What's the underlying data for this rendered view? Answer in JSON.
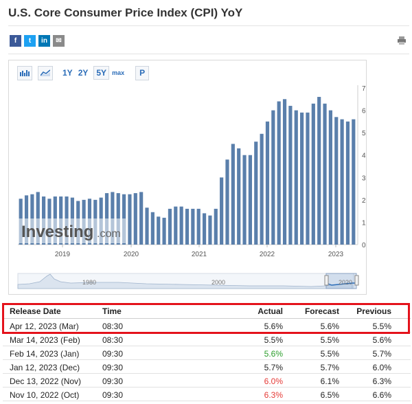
{
  "page": {
    "title": "U.S. Core Consumer Price Index (CPI) YoY"
  },
  "share": {
    "facebook": "f",
    "twitter": "t",
    "linkedin": "in",
    "mail": "✉",
    "print_icon": "printer-icon"
  },
  "toolbar": {
    "ranges": [
      "1Y",
      "2Y",
      "5Y",
      "max"
    ],
    "selected_range": "5Y",
    "p_label": "P"
  },
  "chart_data": {
    "type": "bar",
    "ylim": [
      0,
      7
    ],
    "y_ticks": [
      "0",
      "1",
      "2",
      "3",
      "4",
      "5",
      "6",
      "7"
    ],
    "x_ticks": [
      "2019",
      "2020",
      "2021",
      "2022",
      "2023"
    ],
    "navigator_ticks": [
      "1980",
      "2000",
      "2020"
    ],
    "watermark": "Investing",
    "watermark_suffix": ".com",
    "color": "#5a7fab",
    "values": [
      2.05,
      2.2,
      2.25,
      2.35,
      2.15,
      2.05,
      2.15,
      2.15,
      2.15,
      2.1,
      1.95,
      2.0,
      2.05,
      2.0,
      2.1,
      2.3,
      2.35,
      2.3,
      2.25,
      2.25,
      2.3,
      2.35,
      1.65,
      1.45,
      1.25,
      1.2,
      1.6,
      1.7,
      1.7,
      1.6,
      1.6,
      1.6,
      1.4,
      1.3,
      1.6,
      3.0,
      3.8,
      4.5,
      4.3,
      4.0,
      4.0,
      4.6,
      4.95,
      5.5,
      6.0,
      6.4,
      6.5,
      6.2,
      6.0,
      5.9,
      5.9,
      6.3,
      6.6,
      6.3,
      6.0,
      5.7,
      5.6,
      5.5,
      5.6
    ]
  },
  "table": {
    "headers": {
      "date": "Release Date",
      "time": "Time",
      "actual": "Actual",
      "forecast": "Forecast",
      "previous": "Previous"
    },
    "rows": [
      {
        "date": "Apr 12, 2023 (Mar)",
        "time": "08:30",
        "actual": "5.6%",
        "forecast": "5.6%",
        "previous": "5.5%",
        "actual_color": ""
      },
      {
        "date": "Mar 14, 2023 (Feb)",
        "time": "08:30",
        "actual": "5.5%",
        "forecast": "5.5%",
        "previous": "5.6%",
        "actual_color": ""
      },
      {
        "date": "Feb 14, 2023 (Jan)",
        "time": "09:30",
        "actual": "5.6%",
        "forecast": "5.5%",
        "previous": "5.7%",
        "actual_color": "green"
      },
      {
        "date": "Jan 12, 2023 (Dec)",
        "time": "09:30",
        "actual": "5.7%",
        "forecast": "5.7%",
        "previous": "6.0%",
        "actual_color": ""
      },
      {
        "date": "Dec 13, 2022 (Nov)",
        "time": "09:30",
        "actual": "6.0%",
        "forecast": "6.1%",
        "previous": "6.3%",
        "actual_color": "red"
      },
      {
        "date": "Nov 10, 2022 (Oct)",
        "time": "09:30",
        "actual": "6.3%",
        "forecast": "6.5%",
        "previous": "6.6%",
        "actual_color": "red"
      }
    ]
  }
}
